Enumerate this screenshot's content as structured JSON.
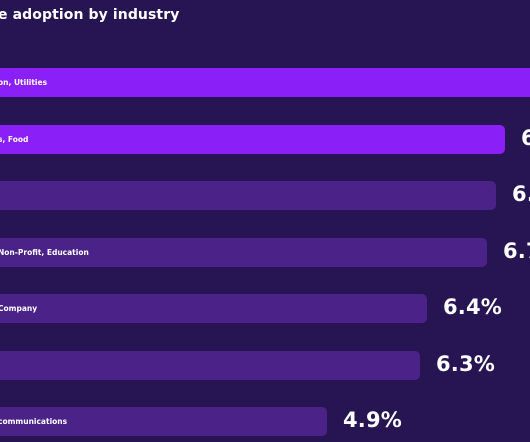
{
  "chart_data": {
    "type": "bar",
    "orientation": "horizontal",
    "title": "e adoption by industry",
    "categories": [
      "on, Utilities",
      "s, Food",
      "",
      "Non-Profit, Education",
      "Company",
      "",
      "communications"
    ],
    "values": [
      null,
      null,
      null,
      null,
      6.4,
      6.3,
      4.9
    ],
    "value_labels": [
      "",
      "6",
      "6.",
      "6.7",
      "6.4%",
      "6.3%",
      "4.9%"
    ],
    "colors": {
      "background": "#261552",
      "bar_highlight": "#8a1ff7",
      "bar_default": "#4b2388",
      "text": "#ffffff"
    },
    "grid": false,
    "legend": "none"
  }
}
